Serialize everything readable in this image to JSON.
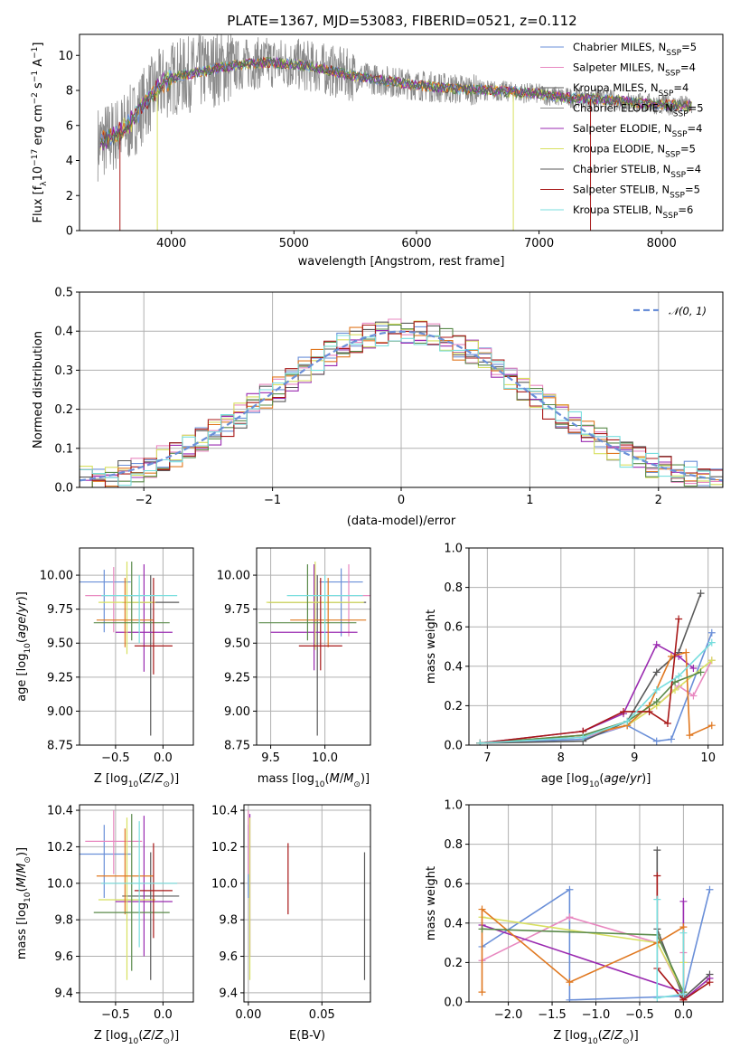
{
  "figure": {
    "title": "PLATE=1367, MJD=53083, FIBERID=0521, z=0.112"
  },
  "colors": {
    "blue": "#6a8fd8",
    "pink": "#e888c0",
    "gray": "#5a5a5a",
    "purple": "#9a2ab0",
    "yellow": "#d8e060",
    "orange": "#e07820",
    "green": "#5a8a4a",
    "red": "#a81818",
    "cyan": "#78dede",
    "data_gray": "#8a8a8a"
  },
  "chart_data": [
    {
      "id": "spectrum",
      "type": "line",
      "xlabel": "wavelength [Angstrom, rest frame]",
      "ylabel": "Flux [f_λ 10^-17 erg cm^-2 s^-1 A^-1]",
      "xlim": [
        3250,
        8500
      ],
      "ylim": [
        0,
        11.2
      ],
      "xticks": [
        4000,
        5000,
        6000,
        7000,
        8000
      ],
      "yticks": [
        0,
        2,
        4,
        6,
        8,
        10
      ],
      "legend_position": "upper-right",
      "legend": [
        {
          "label": "Chabrier MILES, N_SSP=5",
          "color": "blue"
        },
        {
          "label": "Salpeter MILES, N_SSP=4",
          "color": "pink"
        },
        {
          "label": "Kroupa MILES, N_SSP=4",
          "color": "gray"
        },
        {
          "label": "Chabrier ELODIE, N_SSP=5",
          "color": "data_gray"
        },
        {
          "label": "Salpeter ELODIE, N_SSP=4",
          "color": "purple"
        },
        {
          "label": "Kroupa ELODIE, N_SSP=5",
          "color": "yellow"
        },
        {
          "label": "Chabrier STELIB, N_SSP=4",
          "color": "gray"
        },
        {
          "label": "Salpeter STELIB, N_SSP=5",
          "color": "red"
        },
        {
          "label": "Kroupa STELIB, N_SSP=6",
          "color": "cyan"
        }
      ],
      "continuum_model": {
        "x": [
          3400,
          3500,
          3600,
          3700,
          3800,
          3900,
          4000,
          4200,
          4400,
          4600,
          4800,
          5000,
          5200,
          5500,
          5800,
          6000,
          6300,
          6600,
          6800,
          7000,
          7200,
          7500,
          7800,
          8000,
          8250
        ],
        "y": [
          5.0,
          5.3,
          5.7,
          6.4,
          7.5,
          8.2,
          8.7,
          9.0,
          9.3,
          9.5,
          9.6,
          9.5,
          9.3,
          8.8,
          8.5,
          8.3,
          8.1,
          8.0,
          7.9,
          7.8,
          7.6,
          7.5,
          7.3,
          7.2,
          7.1
        ]
      }
    },
    {
      "id": "residuals",
      "type": "line",
      "xlabel": "(data-model)/error",
      "ylabel": "Normed distribution",
      "xlim": [
        -2.5,
        2.5
      ],
      "ylim": [
        0,
        0.5
      ],
      "xticks": [
        -2,
        -1,
        0,
        1,
        2
      ],
      "yticks": [
        0.0,
        0.1,
        0.2,
        0.3,
        0.4,
        0.5
      ],
      "legend": [
        {
          "label": "𝒩(0, 1)",
          "color": "blue",
          "style": "dashed"
        }
      ],
      "gaussian": {
        "mean": 0,
        "sigma": 1
      }
    },
    {
      "id": "age_vs_Z",
      "type": "scatter",
      "xlabel": "Z [log₁₀(Z/Z☉)]",
      "ylabel": "age  [log₁₀(age/yr)]",
      "xlim": [
        -0.88,
        0.32
      ],
      "ylim": [
        8.75,
        10.2
      ],
      "xticks": [
        -0.5,
        0.0
      ],
      "yticks": [
        8.75,
        9.0,
        9.25,
        9.5,
        9.75,
        10.0
      ],
      "crosses": [
        {
          "color": "blue",
          "x": -0.62,
          "y": 9.95,
          "xerr": 0.28,
          "ylo": 9.58,
          "yhi": 10.04
        },
        {
          "color": "pink",
          "x": -0.52,
          "y": 9.85,
          "xerr": 0.3,
          "ylo": 9.58,
          "yhi": 10.06
        },
        {
          "color": "gray",
          "x": -0.13,
          "y": 9.8,
          "xerr": 0.3,
          "ylo": 8.82,
          "yhi": 10.0
        },
        {
          "color": "purple",
          "x": -0.2,
          "y": 9.58,
          "xerr": 0.3,
          "ylo": 9.29,
          "yhi": 10.08
        },
        {
          "color": "yellow",
          "x": -0.38,
          "y": 9.8,
          "xerr": 0.3,
          "ylo": 9.42,
          "yhi": 10.1
        },
        {
          "color": "orange",
          "x": -0.4,
          "y": 9.67,
          "xerr": 0.3,
          "ylo": 9.47,
          "yhi": 9.98
        },
        {
          "color": "green",
          "x": -0.33,
          "y": 9.65,
          "xerr": 0.4,
          "ylo": 9.52,
          "yhi": 10.1
        },
        {
          "color": "red",
          "x": -0.1,
          "y": 9.48,
          "xerr": 0.2,
          "ylo": 9.27,
          "yhi": 9.98
        },
        {
          "color": "cyan",
          "x": -0.25,
          "y": 9.85,
          "xerr": 0.4,
          "ylo": 9.5,
          "yhi": 10.0
        }
      ]
    },
    {
      "id": "age_vs_mass",
      "type": "scatter",
      "xlabel": "mass [log₁₀(M/M☉)]",
      "ylabel": "",
      "xlim": [
        9.37,
        10.42
      ],
      "ylim": [
        8.75,
        10.2
      ],
      "xticks": [
        9.5,
        10.0
      ],
      "yticks": [
        8.75,
        9.0,
        9.25,
        9.5,
        9.75,
        10.0
      ],
      "crosses": [
        {
          "color": "blue",
          "x": 10.15,
          "y": 9.95,
          "xerr": 0.2,
          "ylo": 9.55,
          "yhi": 10.05
        },
        {
          "color": "pink",
          "x": 10.22,
          "y": 9.85,
          "xerr": 0.2,
          "ylo": 9.55,
          "yhi": 10.08
        },
        {
          "color": "gray",
          "x": 9.93,
          "y": 9.8,
          "xerr": 0.45,
          "ylo": 8.82,
          "yhi": 10.0
        },
        {
          "color": "purple",
          "x": 9.9,
          "y": 9.58,
          "xerr": 0.4,
          "ylo": 9.3,
          "yhi": 10.08
        },
        {
          "color": "yellow",
          "x": 9.91,
          "y": 9.8,
          "xerr": 0.45,
          "ylo": 9.45,
          "yhi": 10.1
        },
        {
          "color": "orange",
          "x": 10.03,
          "y": 9.67,
          "xerr": 0.35,
          "ylo": 9.47,
          "yhi": 9.98
        },
        {
          "color": "green",
          "x": 9.84,
          "y": 9.65,
          "xerr": 0.45,
          "ylo": 9.52,
          "yhi": 10.08
        },
        {
          "color": "red",
          "x": 9.96,
          "y": 9.48,
          "xerr": 0.2,
          "ylo": 9.3,
          "yhi": 9.98
        },
        {
          "color": "cyan",
          "x": 10.0,
          "y": 9.85,
          "xerr": 0.35,
          "ylo": 9.52,
          "yhi": 10.0
        }
      ]
    },
    {
      "id": "weight_vs_age",
      "type": "line",
      "xlabel": "age  [log₁₀(age/yr)]",
      "ylabel": "mass weight",
      "xlim": [
        6.75,
        10.2
      ],
      "ylim": [
        0,
        1.0
      ],
      "xticks": [
        7,
        8,
        9,
        10
      ],
      "yticks": [
        0.0,
        0.2,
        0.4,
        0.6,
        0.8,
        1.0
      ],
      "series": [
        {
          "color": "blue",
          "x": [
            6.9,
            8.3,
            8.9,
            9.3,
            9.5,
            10.05
          ],
          "y": [
            0.01,
            0.03,
            0.1,
            0.02,
            0.03,
            0.57
          ]
        },
        {
          "color": "pink",
          "x": [
            6.9,
            8.3,
            8.9,
            9.3,
            9.6,
            9.8,
            10.05
          ],
          "y": [
            0.01,
            0.04,
            0.1,
            0.2,
            0.3,
            0.25,
            0.43
          ]
        },
        {
          "color": "gray",
          "x": [
            6.9,
            8.3,
            8.9,
            9.3,
            9.6,
            9.9
          ],
          "y": [
            0.01,
            0.02,
            0.12,
            0.37,
            0.47,
            0.77
          ]
        },
        {
          "color": "purple",
          "x": [
            6.9,
            8.3,
            8.85,
            9.3,
            9.6,
            9.8
          ],
          "y": [
            0.01,
            0.07,
            0.16,
            0.51,
            0.45,
            0.39
          ]
        },
        {
          "color": "yellow",
          "x": [
            6.9,
            8.3,
            8.9,
            9.3,
            9.55,
            10.05
          ],
          "y": [
            0.01,
            0.05,
            0.1,
            0.2,
            0.28,
            0.43
          ]
        },
        {
          "color": "orange",
          "x": [
            6.9,
            8.3,
            8.9,
            9.2,
            9.5,
            9.7,
            9.75,
            10.05
          ],
          "y": [
            0.01,
            0.05,
            0.1,
            0.2,
            0.45,
            0.47,
            0.05,
            0.1
          ]
        },
        {
          "color": "green",
          "x": [
            6.9,
            8.3,
            8.9,
            9.3,
            9.55,
            9.9
          ],
          "y": [
            0.01,
            0.05,
            0.12,
            0.22,
            0.32,
            0.37
          ]
        },
        {
          "color": "red",
          "x": [
            6.9,
            8.3,
            8.85,
            9.2,
            9.45,
            9.6
          ],
          "y": [
            0.01,
            0.07,
            0.17,
            0.17,
            0.11,
            0.64
          ]
        },
        {
          "color": "cyan",
          "x": [
            6.9,
            8.3,
            8.9,
            9.3,
            9.6,
            10.05
          ],
          "y": [
            0.01,
            0.04,
            0.12,
            0.28,
            0.35,
            0.52
          ]
        }
      ]
    },
    {
      "id": "mass_vs_Z",
      "type": "scatter",
      "xlabel": "Z [log₁₀(Z/Z☉)]",
      "ylabel": "mass [log₁₀(M/M☉)]",
      "xlim": [
        -0.88,
        0.32
      ],
      "ylim": [
        9.35,
        10.43
      ],
      "xticks": [
        -0.5,
        0.0
      ],
      "yticks": [
        9.4,
        9.6,
        9.8,
        10.0,
        10.2,
        10.4
      ],
      "crosses": [
        {
          "color": "blue",
          "x": -0.62,
          "y": 10.16,
          "xerr": 0.28,
          "ylo": 9.92,
          "yhi": 10.32
        },
        {
          "color": "pink",
          "x": -0.52,
          "y": 10.23,
          "xerr": 0.3,
          "ylo": 10.05,
          "yhi": 10.4
        },
        {
          "color": "gray",
          "x": -0.13,
          "y": 9.93,
          "xerr": 0.3,
          "ylo": 9.47,
          "yhi": 10.17
        },
        {
          "color": "purple",
          "x": -0.2,
          "y": 9.9,
          "xerr": 0.3,
          "ylo": 9.6,
          "yhi": 10.37
        },
        {
          "color": "yellow",
          "x": -0.38,
          "y": 9.91,
          "xerr": 0.3,
          "ylo": 9.47,
          "yhi": 10.36
        },
        {
          "color": "orange",
          "x": -0.4,
          "y": 10.04,
          "xerr": 0.3,
          "ylo": 9.83,
          "yhi": 10.3
        },
        {
          "color": "green",
          "x": -0.33,
          "y": 9.84,
          "xerr": 0.4,
          "ylo": 9.52,
          "yhi": 10.38
        },
        {
          "color": "red",
          "x": -0.1,
          "y": 9.96,
          "xerr": 0.2,
          "ylo": 9.7,
          "yhi": 10.22
        },
        {
          "color": "cyan",
          "x": -0.25,
          "y": 10.0,
          "xerr": 0.4,
          "ylo": 9.65,
          "yhi": 10.34
        }
      ]
    },
    {
      "id": "mass_vs_ebv",
      "type": "scatter",
      "xlabel": "E(B-V)",
      "ylabel": "",
      "xlim": [
        -0.003,
        0.083
      ],
      "ylim": [
        9.35,
        10.43
      ],
      "xticks": [
        0.0,
        0.05
      ],
      "yticks": [
        9.4,
        9.6,
        9.8,
        10.0,
        10.2,
        10.4
      ],
      "crosses": [
        {
          "color": "blue",
          "x": 0.0,
          "y": 10.16,
          "xerr": 0,
          "ylo": 9.92,
          "yhi": 10.32
        },
        {
          "color": "pink",
          "x": 0.0,
          "y": 10.23,
          "xerr": 0,
          "ylo": 10.05,
          "yhi": 10.4
        },
        {
          "color": "purple",
          "x": 0.001,
          "y": 9.9,
          "xerr": 0,
          "ylo": 9.6,
          "yhi": 10.38
        },
        {
          "color": "yellow",
          "x": 0.001,
          "y": 9.91,
          "xerr": 0,
          "ylo": 9.47,
          "yhi": 10.36
        },
        {
          "color": "red",
          "x": 0.027,
          "y": 9.96,
          "xerr": 0,
          "ylo": 9.83,
          "yhi": 10.22
        },
        {
          "color": "gray",
          "x": 0.079,
          "y": 9.93,
          "xerr": 0,
          "ylo": 9.47,
          "yhi": 10.17
        }
      ]
    },
    {
      "id": "weight_vs_Z",
      "type": "line",
      "xlabel": "Z [log₁₀(Z/Z☉)]",
      "ylabel": "mass weight",
      "xlim": [
        -2.45,
        0.45
      ],
      "ylim": [
        0,
        1.0
      ],
      "xticks": [
        -2.0,
        -1.5,
        -1.0,
        -0.5,
        0.0
      ],
      "yticks": [
        0.0,
        0.2,
        0.4,
        0.6,
        0.8,
        1.0
      ],
      "series": [
        {
          "color": "blue",
          "x": [
            -2.3,
            -1.3,
            -1.3,
            0.0,
            0.3
          ],
          "y": [
            0.28,
            0.57,
            0.01,
            0.03,
            0.57
          ]
        },
        {
          "color": "pink",
          "x": [
            -2.3,
            -1.3,
            -0.3,
            0.0,
            0.0
          ],
          "y": [
            0.21,
            0.43,
            0.3,
            0.04,
            0.25
          ]
        },
        {
          "color": "gray",
          "x": [
            -0.3,
            -0.3,
            0.0,
            0.3
          ],
          "y": [
            0.77,
            0.37,
            0.02,
            0.14
          ]
        },
        {
          "color": "purple",
          "x": [
            -2.3,
            0.0,
            0.0,
            0.0,
            0.3
          ],
          "y": [
            0.39,
            0.05,
            0.51,
            0.01,
            0.12
          ]
        },
        {
          "color": "yellow",
          "x": [
            -2.3,
            -0.3,
            0.0,
            0.0
          ],
          "y": [
            0.43,
            0.3,
            0.05,
            0.2
          ]
        },
        {
          "color": "orange",
          "x": [
            -2.3,
            -2.3,
            -1.3,
            -0.3,
            0.0,
            0.0
          ],
          "y": [
            0.05,
            0.47,
            0.1,
            0.3,
            0.38,
            0.01
          ]
        },
        {
          "color": "green",
          "x": [
            -2.3,
            -0.3,
            0.0
          ],
          "y": [
            0.37,
            0.34,
            0.05
          ]
        },
        {
          "color": "red",
          "x": [
            -0.3,
            -0.3,
            0.0,
            0.3
          ],
          "y": [
            0.64,
            0.17,
            0.01,
            0.1
          ]
        },
        {
          "color": "cyan",
          "x": [
            -0.3,
            -0.3,
            0.0,
            0.0
          ],
          "y": [
            0.52,
            0.02,
            0.04,
            0.35
          ]
        }
      ]
    }
  ]
}
